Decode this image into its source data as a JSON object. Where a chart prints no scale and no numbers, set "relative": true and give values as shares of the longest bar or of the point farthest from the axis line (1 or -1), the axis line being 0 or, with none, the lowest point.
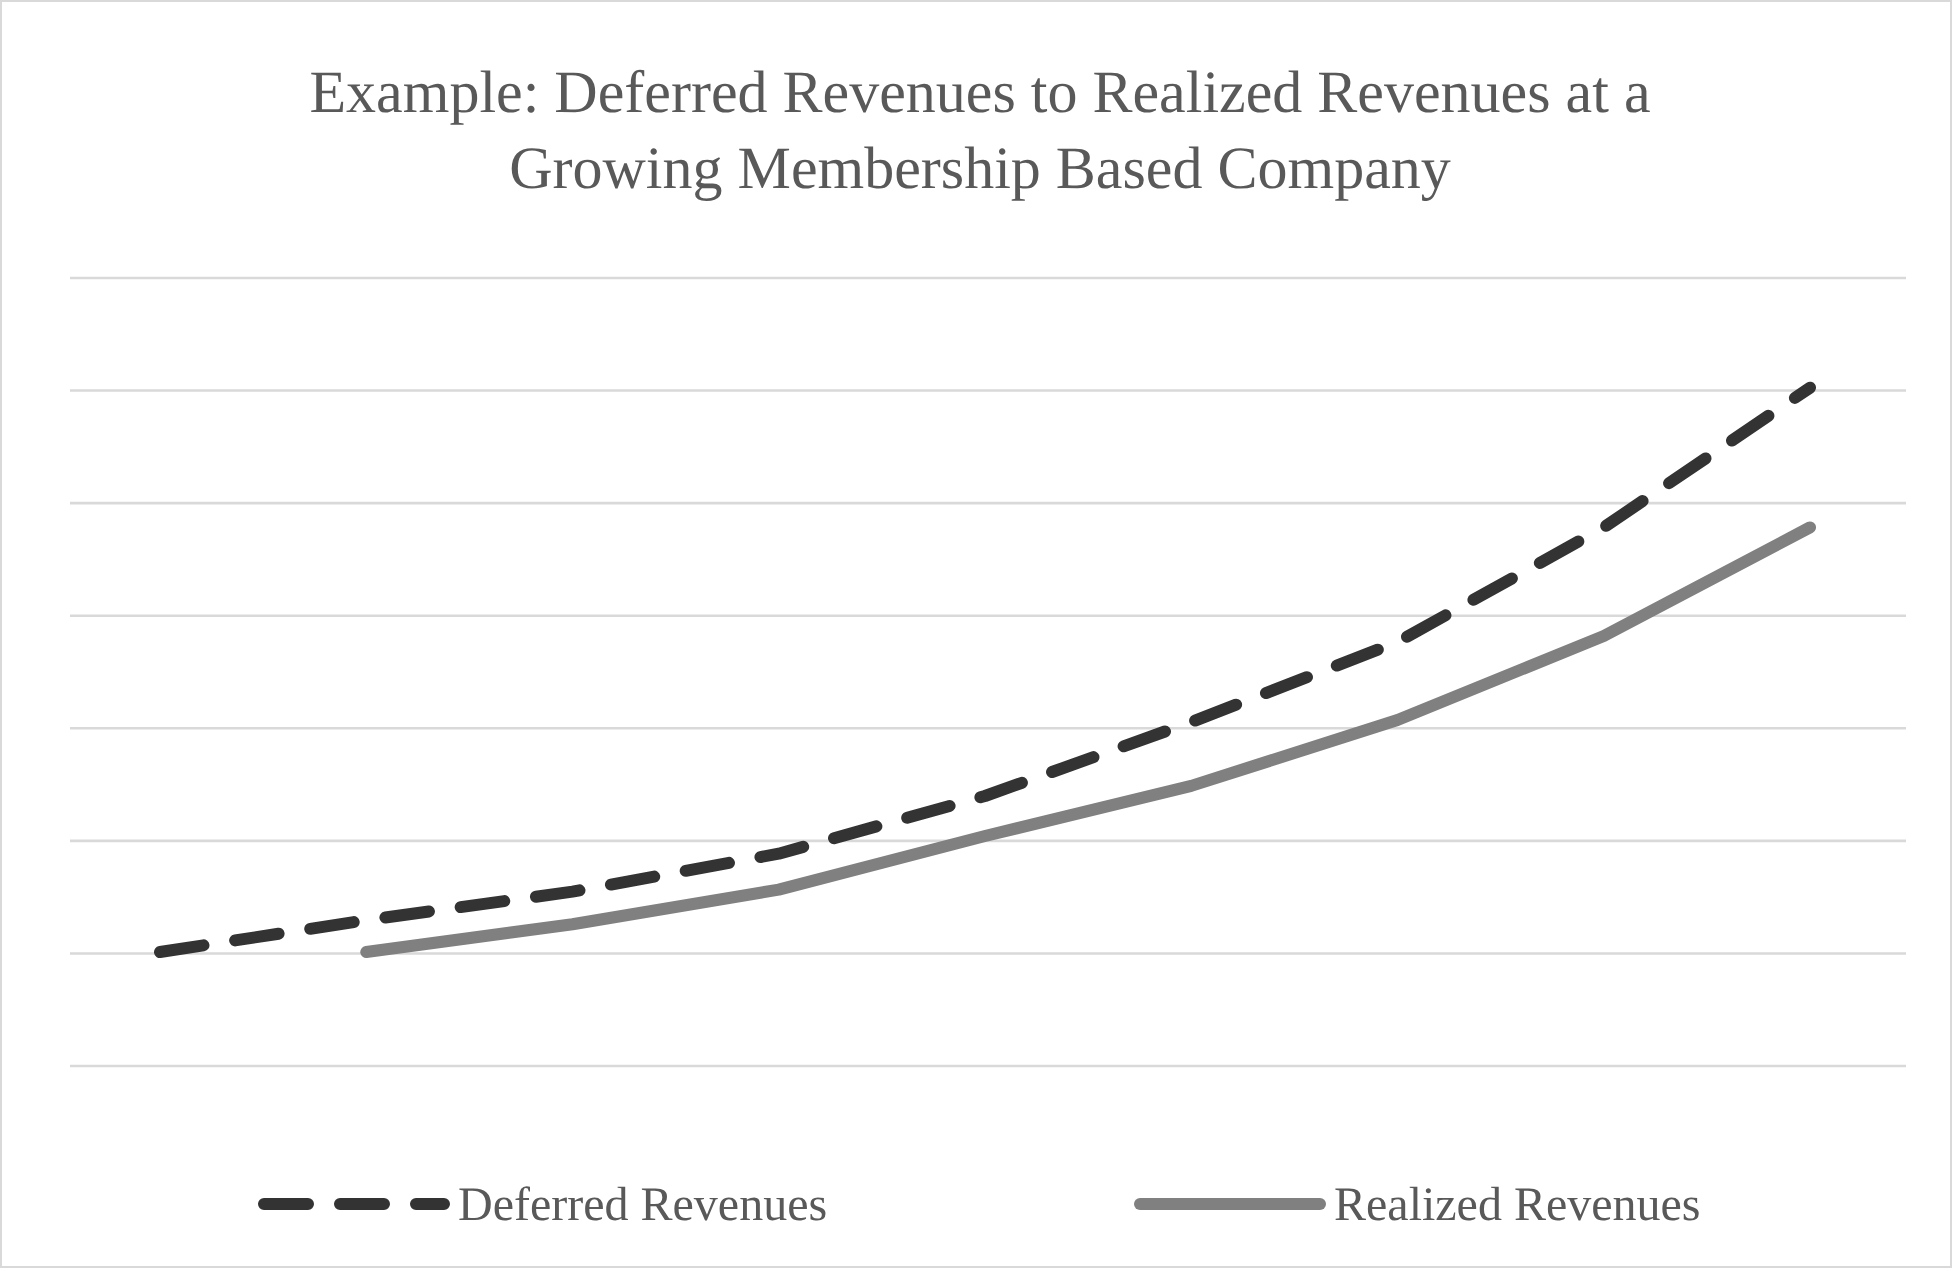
{
  "chart_data": {
    "type": "line",
    "title": "Example: Deferred Revenues to Realized Revenues at a Growing Membership Based Company",
    "relative": true,
    "grid": true,
    "legend": "bottom",
    "tick_labels": false,
    "categories": [
      null,
      null,
      null,
      null,
      null,
      null,
      null,
      null,
      null
    ],
    "series": [
      {
        "name": "Deferred Revenues",
        "color": "#333333",
        "line_style": "dashed",
        "values": [
          0.168,
          0.215,
          0.257,
          0.313,
          0.398,
          0.507,
          0.625,
          0.794,
          1
        ]
      },
      {
        "name": "Realized Revenues",
        "color": "#808080",
        "line_style": "solid",
        "values": [
          null,
          0.168,
          0.209,
          0.26,
          0.339,
          0.413,
          0.51,
          0.634,
          0.794
        ]
      }
    ]
  }
}
